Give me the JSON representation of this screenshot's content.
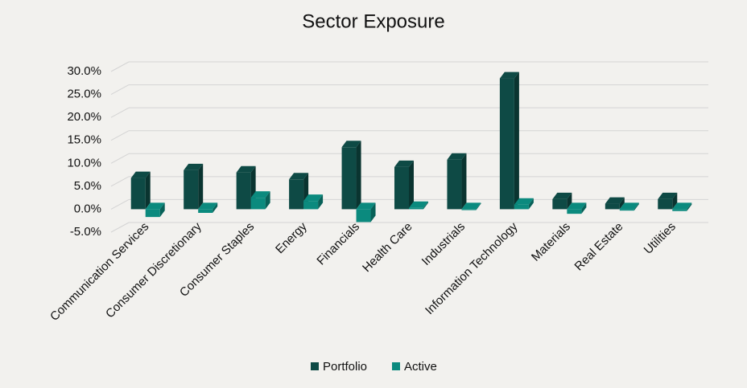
{
  "chart_data": {
    "type": "bar3d",
    "title": "Sector Exposure",
    "categories": [
      "Communication Services",
      "Consumer Discretionary",
      "Consumer Staples",
      "Energy",
      "Financials",
      "Health Care",
      "Industrials",
      "Information Technology",
      "Materials",
      "Real Estate",
      "Utilities"
    ],
    "series": [
      {
        "name": "Portfolio",
        "color": "#0e4a45",
        "values": [
          6.8,
          8.5,
          8.0,
          6.5,
          13.5,
          9.2,
          10.8,
          28.5,
          2.2,
          1.2,
          2.2
        ]
      },
      {
        "name": "Active",
        "color": "#0b8a7e",
        "values": [
          -1.7,
          -0.8,
          2.5,
          1.8,
          -2.8,
          0.3,
          -0.2,
          1.0,
          -1.0,
          -0.3,
          -0.4
        ]
      }
    ],
    "ylim": [
      -5,
      30
    ],
    "yticks": [
      {
        "value": -5,
        "label": "-5.0%"
      },
      {
        "value": 0,
        "label": "0.0%"
      },
      {
        "value": 5,
        "label": "5.0%"
      },
      {
        "value": 10,
        "label": "10.0%"
      },
      {
        "value": 15,
        "label": "15.0%"
      },
      {
        "value": 20,
        "label": "20.0%"
      },
      {
        "value": 25,
        "label": "25.0%"
      },
      {
        "value": 30,
        "label": "30.0%"
      }
    ],
    "grid": true
  }
}
